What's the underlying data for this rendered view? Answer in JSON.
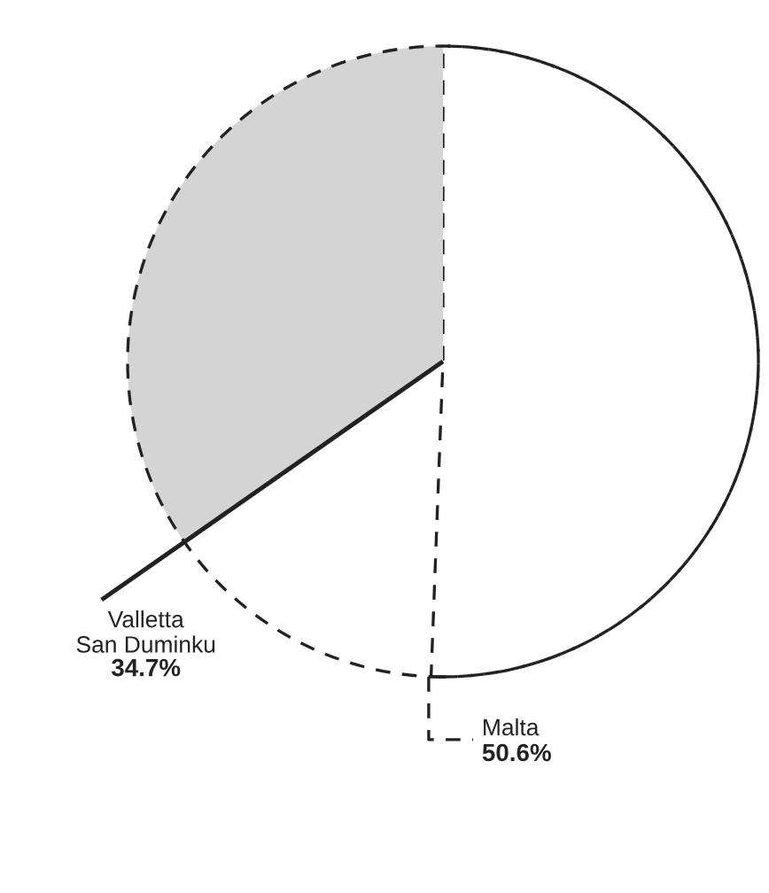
{
  "chart_data": {
    "type": "pie",
    "categories": [
      "Valletta\nSan Duminku",
      "Malta"
    ],
    "values": [
      34.7,
      50.6
    ],
    "colors": [
      "#d4d4d4",
      "#ffffff"
    ],
    "line_style": [
      "solid",
      "dashed"
    ],
    "value_labels": [
      "34.7%",
      "50.6%"
    ]
  }
}
